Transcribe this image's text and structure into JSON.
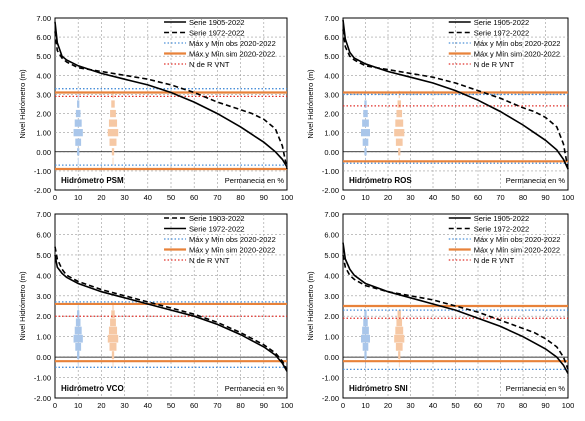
{
  "colors": {
    "serie_a": "#000000",
    "serie_b": "#000000",
    "obs": "#4a8fd8",
    "sim": "#e8823a",
    "ndr": "#e0302a",
    "hist_obs": "#a9c6ea",
    "hist_sim": "#f6c8a4",
    "grid": "#9a9a9a"
  },
  "chart_data": [
    {
      "type": "line",
      "label": "Hidrómetro PSM",
      "xlabel": "Permanecia en %",
      "ylabel": "Nivel Hidrómetro (m)",
      "xlim": [
        0,
        100
      ],
      "ylim": [
        -2,
        7
      ],
      "xticks": [
        "0",
        "10",
        "20",
        "30",
        "40",
        "50",
        "60",
        "70",
        "80",
        "90",
        "100"
      ],
      "yticks": [
        "-2.00",
        "-1.00",
        "0.00",
        "1.00",
        "2.00",
        "3.00",
        "4.00",
        "5.00",
        "6.00",
        "7.00"
      ],
      "grid": true,
      "legend": [
        {
          "key": "serie_a",
          "label": "Serie 1905-2022",
          "style": "solid"
        },
        {
          "key": "serie_b",
          "label": "Serie 1972-2022",
          "style": "dash"
        },
        {
          "key": "obs",
          "label": "Máx y Mín obs 2020-2022",
          "style": "dot"
        },
        {
          "key": "sim",
          "label": "Máx y Mín sim 2020-2022",
          "style": "solid"
        },
        {
          "key": "ndr",
          "label": "N de R VNT",
          "style": "dot"
        }
      ],
      "series": [
        {
          "key": "serie_a",
          "name": "Serie 1905-2022",
          "x": [
            0,
            1,
            3,
            5,
            10,
            20,
            30,
            40,
            50,
            60,
            70,
            80,
            85,
            90,
            95,
            98,
            100
          ],
          "y": [
            6.8,
            5.7,
            5.0,
            4.8,
            4.5,
            4.1,
            3.8,
            3.5,
            3.1,
            2.6,
            2.0,
            1.3,
            0.9,
            0.5,
            0.0,
            -0.4,
            -0.8
          ]
        },
        {
          "key": "serie_b",
          "name": "Serie 1972-2022",
          "x": [
            0,
            1,
            3,
            5,
            10,
            20,
            30,
            40,
            50,
            60,
            70,
            80,
            85,
            90,
            95,
            98,
            100
          ],
          "y": [
            6.3,
            5.3,
            4.9,
            4.7,
            4.4,
            4.2,
            4.0,
            3.8,
            3.5,
            3.1,
            2.6,
            2.2,
            2.0,
            1.7,
            1.2,
            0.3,
            -0.9
          ]
        }
      ],
      "hlines": {
        "obs": [
          3.3,
          -0.7
        ],
        "sim": [
          3.1,
          -0.9
        ],
        "ndr": [
          2.9
        ]
      },
      "hist_obs": {
        "x": 10,
        "bins": [
          [
            -0.5,
            0.3
          ],
          [
            0.0,
            1.0
          ],
          [
            0.5,
            2.5
          ],
          [
            1.0,
            4.0
          ],
          [
            1.5,
            3.0
          ],
          [
            2.0,
            2.0
          ],
          [
            2.5,
            1.0
          ],
          [
            3.0,
            0.3
          ]
        ]
      },
      "hist_sim": {
        "x": 25,
        "bins": [
          [
            -0.5,
            0.3
          ],
          [
            0.0,
            1.0
          ],
          [
            0.5,
            3.0
          ],
          [
            1.0,
            4.5
          ],
          [
            1.5,
            3.5
          ],
          [
            2.0,
            2.5
          ],
          [
            2.5,
            1.5
          ],
          [
            3.0,
            0.5
          ]
        ]
      }
    },
    {
      "type": "line",
      "label": "Hidrómetro ROS",
      "xlabel": "Permanecia en %",
      "ylabel": "Nivel Hidrómetro (m)",
      "xlim": [
        0,
        100
      ],
      "ylim": [
        -2,
        7
      ],
      "xticks": [
        "0",
        "10",
        "20",
        "30",
        "40",
        "50",
        "60",
        "70",
        "80",
        "90",
        "100"
      ],
      "yticks": [
        "-2.00",
        "-1.00",
        "0.00",
        "1.00",
        "2.00",
        "3.00",
        "4.00",
        "5.00",
        "6.00",
        "7.00"
      ],
      "grid": true,
      "legend": [
        {
          "key": "serie_a",
          "label": "Serie 1905-2022",
          "style": "solid"
        },
        {
          "key": "serie_b",
          "label": "Serie 1972-2022",
          "style": "dash"
        },
        {
          "key": "obs",
          "label": "Máx y Mín obs 2020-2022",
          "style": "dot"
        },
        {
          "key": "sim",
          "label": "Máx y Mín sim 2020-2022",
          "style": "solid"
        },
        {
          "key": "ndr",
          "label": "N de R VNT",
          "style": "dot"
        }
      ],
      "series": [
        {
          "key": "serie_a",
          "name": "Serie 1905-2022",
          "x": [
            0,
            1,
            3,
            5,
            10,
            20,
            30,
            40,
            50,
            60,
            70,
            80,
            85,
            90,
            95,
            98,
            100
          ],
          "y": [
            6.9,
            5.9,
            5.2,
            4.9,
            4.6,
            4.2,
            3.9,
            3.6,
            3.2,
            2.7,
            2.1,
            1.4,
            1.0,
            0.6,
            0.1,
            -0.4,
            -0.9
          ]
        },
        {
          "key": "serie_b",
          "name": "Serie 1972-2022",
          "x": [
            0,
            1,
            3,
            5,
            10,
            20,
            30,
            40,
            50,
            60,
            70,
            80,
            85,
            90,
            95,
            98,
            100
          ],
          "y": [
            6.4,
            5.5,
            5.0,
            4.8,
            4.5,
            4.3,
            4.1,
            3.9,
            3.6,
            3.2,
            2.8,
            2.3,
            2.1,
            1.8,
            1.3,
            0.4,
            -0.9
          ]
        }
      ],
      "hlines": {
        "obs": [
          3.0,
          -0.6
        ],
        "sim": [
          3.1,
          -0.5
        ],
        "ndr": [
          2.4
        ]
      },
      "hist_obs": {
        "x": 10,
        "bins": [
          [
            -0.5,
            0.3
          ],
          [
            0.0,
            1.0
          ],
          [
            0.5,
            2.5
          ],
          [
            1.0,
            4.0
          ],
          [
            1.5,
            3.0
          ],
          [
            2.0,
            2.0
          ],
          [
            2.5,
            1.0
          ],
          [
            3.0,
            0.3
          ]
        ]
      },
      "hist_sim": {
        "x": 25,
        "bins": [
          [
            -0.5,
            0.3
          ],
          [
            0.0,
            1.0
          ],
          [
            0.5,
            3.0
          ],
          [
            1.0,
            4.5
          ],
          [
            1.5,
            3.5
          ],
          [
            2.0,
            2.5
          ],
          [
            2.5,
            1.5
          ],
          [
            3.0,
            0.5
          ]
        ]
      }
    },
    {
      "type": "line",
      "label": "Hidrómetro VCO",
      "xlabel": "Permanecia en %",
      "ylabel": "Nivel Hidrómetro (m)",
      "xlim": [
        0,
        100
      ],
      "ylim": [
        -2,
        7
      ],
      "xticks": [
        "0",
        "10",
        "20",
        "30",
        "40",
        "50",
        "60",
        "70",
        "80",
        "90",
        "100"
      ],
      "yticks": [
        "-2.00",
        "-1.00",
        "0.00",
        "1.00",
        "2.00",
        "3.00",
        "4.00",
        "5.00",
        "6.00",
        "7.00"
      ],
      "grid": true,
      "legend": [
        {
          "key": "serie_b",
          "label": "Serie 1903-2022",
          "style": "dash"
        },
        {
          "key": "serie_a",
          "label": "Serie 1972-2022",
          "style": "solid"
        },
        {
          "key": "obs",
          "label": "Máx y Mín obs 2020-2022",
          "style": "dot"
        },
        {
          "key": "sim",
          "label": "Máx y Mín sim 2020-2022",
          "style": "solid"
        },
        {
          "key": "ndr",
          "label": "N de R VNT",
          "style": "dot"
        }
      ],
      "series": [
        {
          "key": "serie_b",
          "name": "Serie 1903-2022",
          "x": [
            0,
            1,
            3,
            5,
            10,
            20,
            30,
            40,
            50,
            60,
            70,
            80,
            85,
            90,
            95,
            98,
            100
          ],
          "y": [
            5.4,
            4.8,
            4.3,
            4.0,
            3.7,
            3.3,
            3.0,
            2.7,
            2.4,
            2.1,
            1.7,
            1.2,
            0.9,
            0.6,
            0.2,
            -0.2,
            -0.6
          ]
        },
        {
          "key": "serie_a",
          "name": "Serie 1972-2022",
          "x": [
            0,
            1,
            3,
            5,
            10,
            20,
            30,
            40,
            50,
            60,
            70,
            80,
            85,
            90,
            95,
            98,
            100
          ],
          "y": [
            5.0,
            4.4,
            4.1,
            3.9,
            3.6,
            3.2,
            2.9,
            2.6,
            2.3,
            2.0,
            1.6,
            1.1,
            0.8,
            0.5,
            0.1,
            -0.3,
            -0.7
          ]
        }
      ],
      "hlines": {
        "obs": [
          2.7,
          -0.5
        ],
        "sim": [
          2.6,
          -0.2
        ],
        "ndr": [
          2.0
        ]
      },
      "hist_obs": {
        "x": 10,
        "bins": [
          [
            -0.3,
            0.3
          ],
          [
            0.1,
            1.0
          ],
          [
            0.5,
            2.5
          ],
          [
            0.9,
            4.0
          ],
          [
            1.3,
            3.0
          ],
          [
            1.7,
            2.0
          ],
          [
            2.1,
            1.0
          ],
          [
            2.5,
            0.3
          ]
        ]
      },
      "hist_sim": {
        "x": 25,
        "bins": [
          [
            -0.3,
            0.3
          ],
          [
            0.1,
            1.0
          ],
          [
            0.5,
            3.0
          ],
          [
            0.9,
            4.5
          ],
          [
            1.3,
            3.5
          ],
          [
            1.7,
            2.5
          ],
          [
            2.1,
            1.5
          ],
          [
            2.5,
            0.5
          ]
        ]
      }
    },
    {
      "type": "line",
      "label": "Hidrómetro SNI",
      "xlabel": "Permanecia en %",
      "ylabel": "Nivel Hidrómetro (m)",
      "xlim": [
        0,
        100
      ],
      "ylim": [
        -2,
        7
      ],
      "xticks": [
        "0",
        "10",
        "20",
        "30",
        "40",
        "50",
        "60",
        "70",
        "80",
        "90",
        "100"
      ],
      "yticks": [
        "-2.00",
        "-1.00",
        "0.00",
        "1.00",
        "2.00",
        "3.00",
        "4.00",
        "5.00",
        "6.00",
        "7.00"
      ],
      "grid": true,
      "legend": [
        {
          "key": "serie_a",
          "label": "Serie 1905-2022",
          "style": "solid"
        },
        {
          "key": "serie_b",
          "label": "Serie 1972-2022",
          "style": "dash"
        },
        {
          "key": "obs",
          "label": "Máx y Mín obs 2020-2022",
          "style": "dot"
        },
        {
          "key": "sim",
          "label": "Máx y Mín sim 2020-2022",
          "style": "solid"
        },
        {
          "key": "ndr",
          "label": "N de R VNT",
          "style": "dot"
        }
      ],
      "series": [
        {
          "key": "serie_a",
          "name": "Serie 1905-2022",
          "x": [
            0,
            1,
            3,
            5,
            10,
            20,
            30,
            40,
            50,
            60,
            70,
            80,
            85,
            90,
            95,
            98,
            100
          ],
          "y": [
            5.6,
            4.8,
            4.3,
            4.0,
            3.6,
            3.2,
            2.9,
            2.6,
            2.3,
            1.9,
            1.5,
            1.0,
            0.7,
            0.4,
            0.0,
            -0.4,
            -0.8
          ]
        },
        {
          "key": "serie_b",
          "name": "Serie 1972-2022",
          "x": [
            0,
            1,
            3,
            5,
            10,
            20,
            30,
            40,
            50,
            60,
            70,
            80,
            85,
            90,
            95,
            98,
            100
          ],
          "y": [
            5.0,
            4.4,
            4.0,
            3.8,
            3.5,
            3.2,
            3.0,
            2.8,
            2.5,
            2.2,
            1.8,
            1.4,
            1.2,
            0.9,
            0.5,
            0.0,
            -0.6
          ]
        }
      ],
      "hlines": {
        "obs": [
          2.3,
          -0.6
        ],
        "sim": [
          2.5,
          -0.2
        ],
        "ndr": [
          1.9
        ]
      },
      "hist_obs": {
        "x": 10,
        "bins": [
          [
            -0.3,
            0.3
          ],
          [
            0.1,
            1.0
          ],
          [
            0.5,
            2.5
          ],
          [
            0.9,
            4.0
          ],
          [
            1.3,
            3.0
          ],
          [
            1.7,
            2.0
          ],
          [
            2.1,
            1.0
          ]
        ]
      },
      "hist_sim": {
        "x": 25,
        "bins": [
          [
            -0.3,
            0.3
          ],
          [
            0.1,
            1.0
          ],
          [
            0.5,
            3.0
          ],
          [
            0.9,
            4.5
          ],
          [
            1.3,
            3.5
          ],
          [
            1.7,
            2.5
          ],
          [
            2.1,
            1.5
          ]
        ]
      }
    }
  ]
}
